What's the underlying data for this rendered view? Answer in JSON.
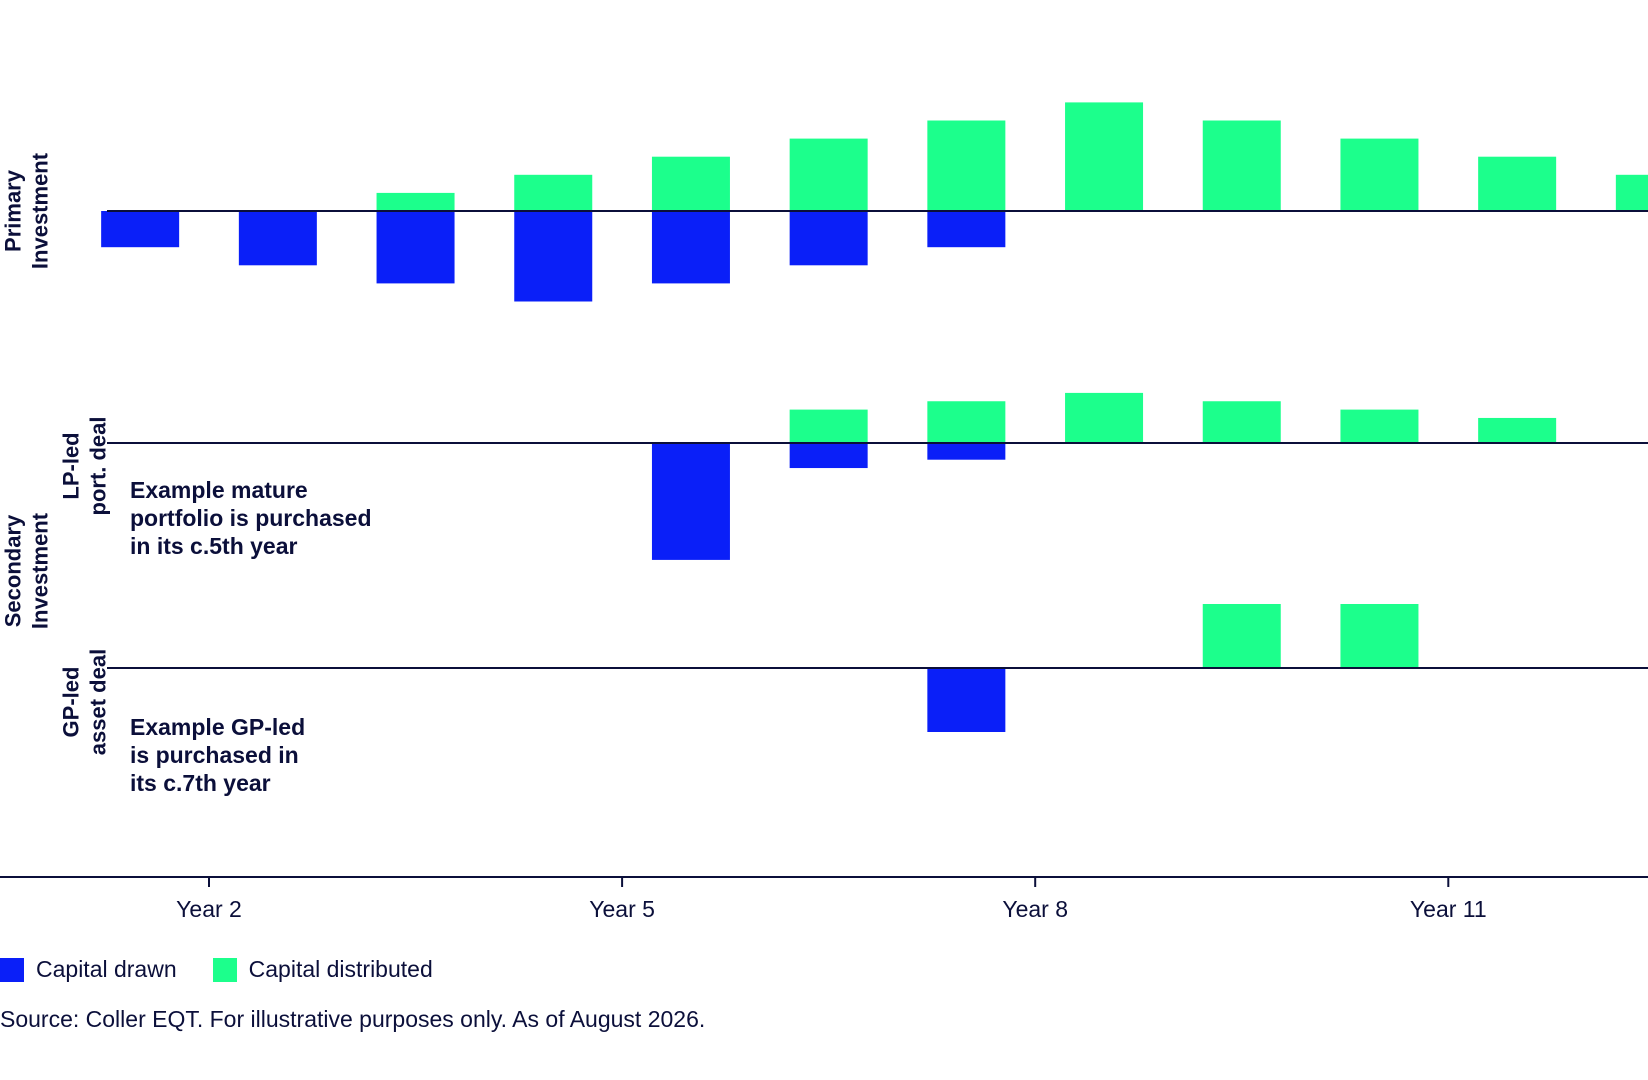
{
  "chart_data": {
    "type": "bar",
    "x_ticks": [
      "Year 2",
      "Year 5",
      "Year 8",
      "Year 11"
    ],
    "colors": {
      "drawn": "#0a1ff8",
      "distributed": "#1cff8c",
      "axis": "#0b0f3a"
    },
    "legend": [
      {
        "key": "drawn",
        "label": "Capital drawn"
      },
      {
        "key": "distributed",
        "label": "Capital distributed"
      }
    ],
    "panels": [
      {
        "id": "primary",
        "label_lines": [
          "Primary",
          "Investment"
        ],
        "periods": [
          1.5,
          2.5,
          3.5,
          4.5,
          5.5,
          6.5,
          7.5,
          8.5,
          9.5,
          10.5,
          11.5,
          12.5
        ],
        "series": [
          {
            "name": "Capital drawn",
            "values": [
              -2,
              -3,
              -4,
              -5,
              -4,
              -3,
              -2,
              0,
              0,
              0,
              0,
              0
            ]
          },
          {
            "name": "Capital distributed",
            "values": [
              0,
              0,
              1,
              2,
              3,
              4,
              5,
              6,
              5,
              4,
              3,
              2
            ]
          }
        ]
      },
      {
        "id": "lp-led",
        "group_label_lines": [
          "Secondary",
          "Investment"
        ],
        "label_lines": [
          "LP-led",
          "port. deal"
        ],
        "annotation_lines": [
          "Example mature",
          "portfolio is purchased",
          "in its c.5th year"
        ],
        "periods": [
          5.5,
          6.5,
          7.5,
          8.5,
          9.5,
          10.5,
          11.5
        ],
        "series": [
          {
            "name": "Capital drawn",
            "values": [
              -7,
              -1.5,
              -1,
              0,
              0,
              0,
              0
            ]
          },
          {
            "name": "Capital distributed",
            "values": [
              0,
              2,
              2.5,
              3,
              2.5,
              2,
              1.5
            ]
          }
        ]
      },
      {
        "id": "gp-led",
        "label_lines": [
          "GP-led",
          "asset deal"
        ],
        "annotation_lines": [
          "Example GP-led",
          "is purchased in",
          "its c.7th year"
        ],
        "periods": [
          7.5,
          9.5,
          10.5
        ],
        "series": [
          {
            "name": "Capital drawn",
            "values": [
              -4,
              0,
              0
            ]
          },
          {
            "name": "Capital distributed",
            "values": [
              0,
              4,
              4
            ]
          }
        ]
      }
    ]
  },
  "source": "Source: Coller EQT. For illustrative purposes only. As of August 2026."
}
